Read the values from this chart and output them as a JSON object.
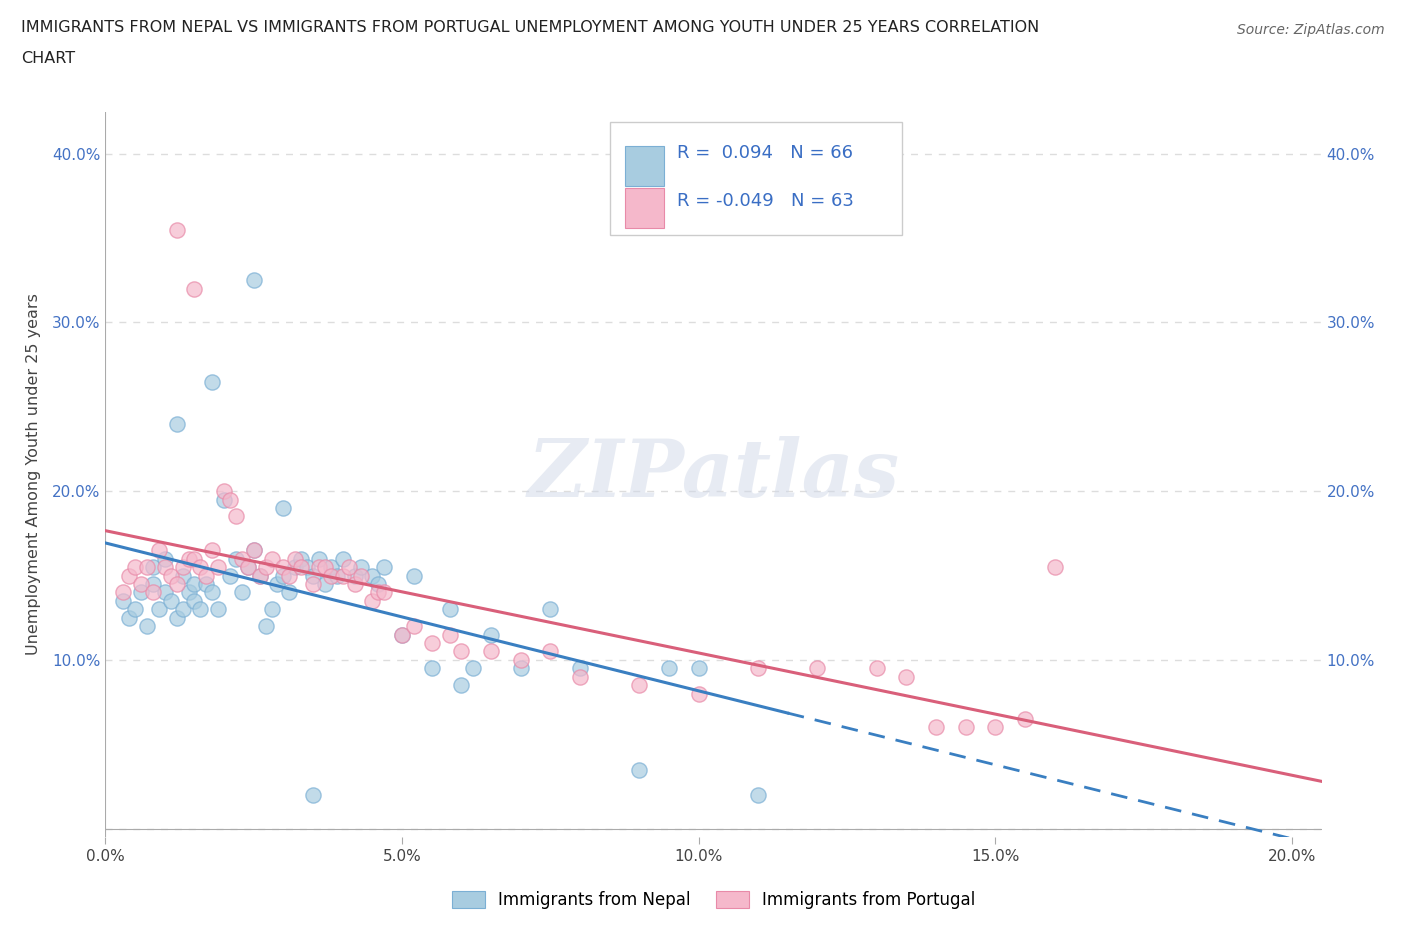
{
  "title_line1": "IMMIGRANTS FROM NEPAL VS IMMIGRANTS FROM PORTUGAL UNEMPLOYMENT AMONG YOUTH UNDER 25 YEARS CORRELATION",
  "title_line2": "CHART",
  "source_text": "Source: ZipAtlas.com",
  "ylabel": "Unemployment Among Youth under 25 years",
  "legend_label1": "Immigrants from Nepal",
  "legend_label2": "Immigrants from Portugal",
  "R1": 0.094,
  "N1": 66,
  "R2": -0.049,
  "N2": 63,
  "color_nepal": "#a8cce0",
  "color_nepal_edge": "#7bafd4",
  "color_portugal": "#f5b8cb",
  "color_portugal_edge": "#e88aa8",
  "color_nepal_line": "#3a7fc1",
  "color_portugal_line": "#d95f7a",
  "xlim": [
    0.0,
    0.205
  ],
  "ylim": [
    -0.005,
    0.425
  ],
  "x_ticks": [
    0.0,
    0.05,
    0.1,
    0.15,
    0.2
  ],
  "x_tick_labels": [
    "0.0%",
    "5.0%",
    "10.0%",
    "15.0%",
    "20.0%"
  ],
  "y_ticks": [
    0.0,
    0.1,
    0.2,
    0.3,
    0.4
  ],
  "y_tick_labels": [
    "",
    "10.0%",
    "20.0%",
    "30.0%",
    "40.0%"
  ],
  "watermark_text": "ZIPatlas",
  "background_color": "#ffffff",
  "grid_color": "#dddddd",
  "nepal_x": [
    0.003,
    0.004,
    0.005,
    0.006,
    0.007,
    0.008,
    0.008,
    0.009,
    0.01,
    0.01,
    0.011,
    0.012,
    0.013,
    0.013,
    0.014,
    0.015,
    0.015,
    0.016,
    0.017,
    0.018,
    0.019,
    0.02,
    0.021,
    0.022,
    0.023,
    0.024,
    0.025,
    0.026,
    0.027,
    0.028,
    0.029,
    0.03,
    0.031,
    0.032,
    0.033,
    0.034,
    0.035,
    0.036,
    0.037,
    0.038,
    0.039,
    0.04,
    0.042,
    0.043,
    0.045,
    0.046,
    0.047,
    0.05,
    0.052,
    0.055,
    0.058,
    0.06,
    0.062,
    0.065,
    0.07,
    0.075,
    0.08,
    0.09,
    0.095,
    0.1,
    0.11,
    0.012,
    0.018,
    0.025,
    0.03,
    0.035
  ],
  "nepal_y": [
    0.135,
    0.125,
    0.13,
    0.14,
    0.12,
    0.145,
    0.155,
    0.13,
    0.14,
    0.16,
    0.135,
    0.125,
    0.13,
    0.15,
    0.14,
    0.135,
    0.145,
    0.13,
    0.145,
    0.14,
    0.13,
    0.195,
    0.15,
    0.16,
    0.14,
    0.155,
    0.165,
    0.15,
    0.12,
    0.13,
    0.145,
    0.15,
    0.14,
    0.155,
    0.16,
    0.155,
    0.15,
    0.16,
    0.145,
    0.155,
    0.15,
    0.16,
    0.15,
    0.155,
    0.15,
    0.145,
    0.155,
    0.115,
    0.15,
    0.095,
    0.13,
    0.085,
    0.095,
    0.115,
    0.095,
    0.13,
    0.095,
    0.035,
    0.095,
    0.095,
    0.02,
    0.24,
    0.265,
    0.325,
    0.19,
    0.02
  ],
  "portugal_x": [
    0.003,
    0.004,
    0.005,
    0.006,
    0.007,
    0.008,
    0.009,
    0.01,
    0.011,
    0.012,
    0.013,
    0.014,
    0.015,
    0.016,
    0.017,
    0.018,
    0.019,
    0.02,
    0.021,
    0.022,
    0.023,
    0.024,
    0.025,
    0.026,
    0.027,
    0.028,
    0.03,
    0.031,
    0.032,
    0.033,
    0.035,
    0.036,
    0.037,
    0.038,
    0.04,
    0.041,
    0.042,
    0.043,
    0.045,
    0.046,
    0.047,
    0.05,
    0.052,
    0.055,
    0.058,
    0.06,
    0.065,
    0.07,
    0.075,
    0.08,
    0.09,
    0.1,
    0.11,
    0.12,
    0.13,
    0.135,
    0.14,
    0.145,
    0.15,
    0.155,
    0.16,
    0.012,
    0.015
  ],
  "portugal_y": [
    0.14,
    0.15,
    0.155,
    0.145,
    0.155,
    0.14,
    0.165,
    0.155,
    0.15,
    0.145,
    0.155,
    0.16,
    0.16,
    0.155,
    0.15,
    0.165,
    0.155,
    0.2,
    0.195,
    0.185,
    0.16,
    0.155,
    0.165,
    0.15,
    0.155,
    0.16,
    0.155,
    0.15,
    0.16,
    0.155,
    0.145,
    0.155,
    0.155,
    0.15,
    0.15,
    0.155,
    0.145,
    0.15,
    0.135,
    0.14,
    0.14,
    0.115,
    0.12,
    0.11,
    0.115,
    0.105,
    0.105,
    0.1,
    0.105,
    0.09,
    0.085,
    0.08,
    0.095,
    0.095,
    0.095,
    0.09,
    0.06,
    0.06,
    0.06,
    0.065,
    0.155,
    0.355,
    0.32
  ],
  "nepal_line_solid_end": 0.115,
  "nepal_line_dash_start": 0.115,
  "nepal_line_dash_end": 0.205
}
